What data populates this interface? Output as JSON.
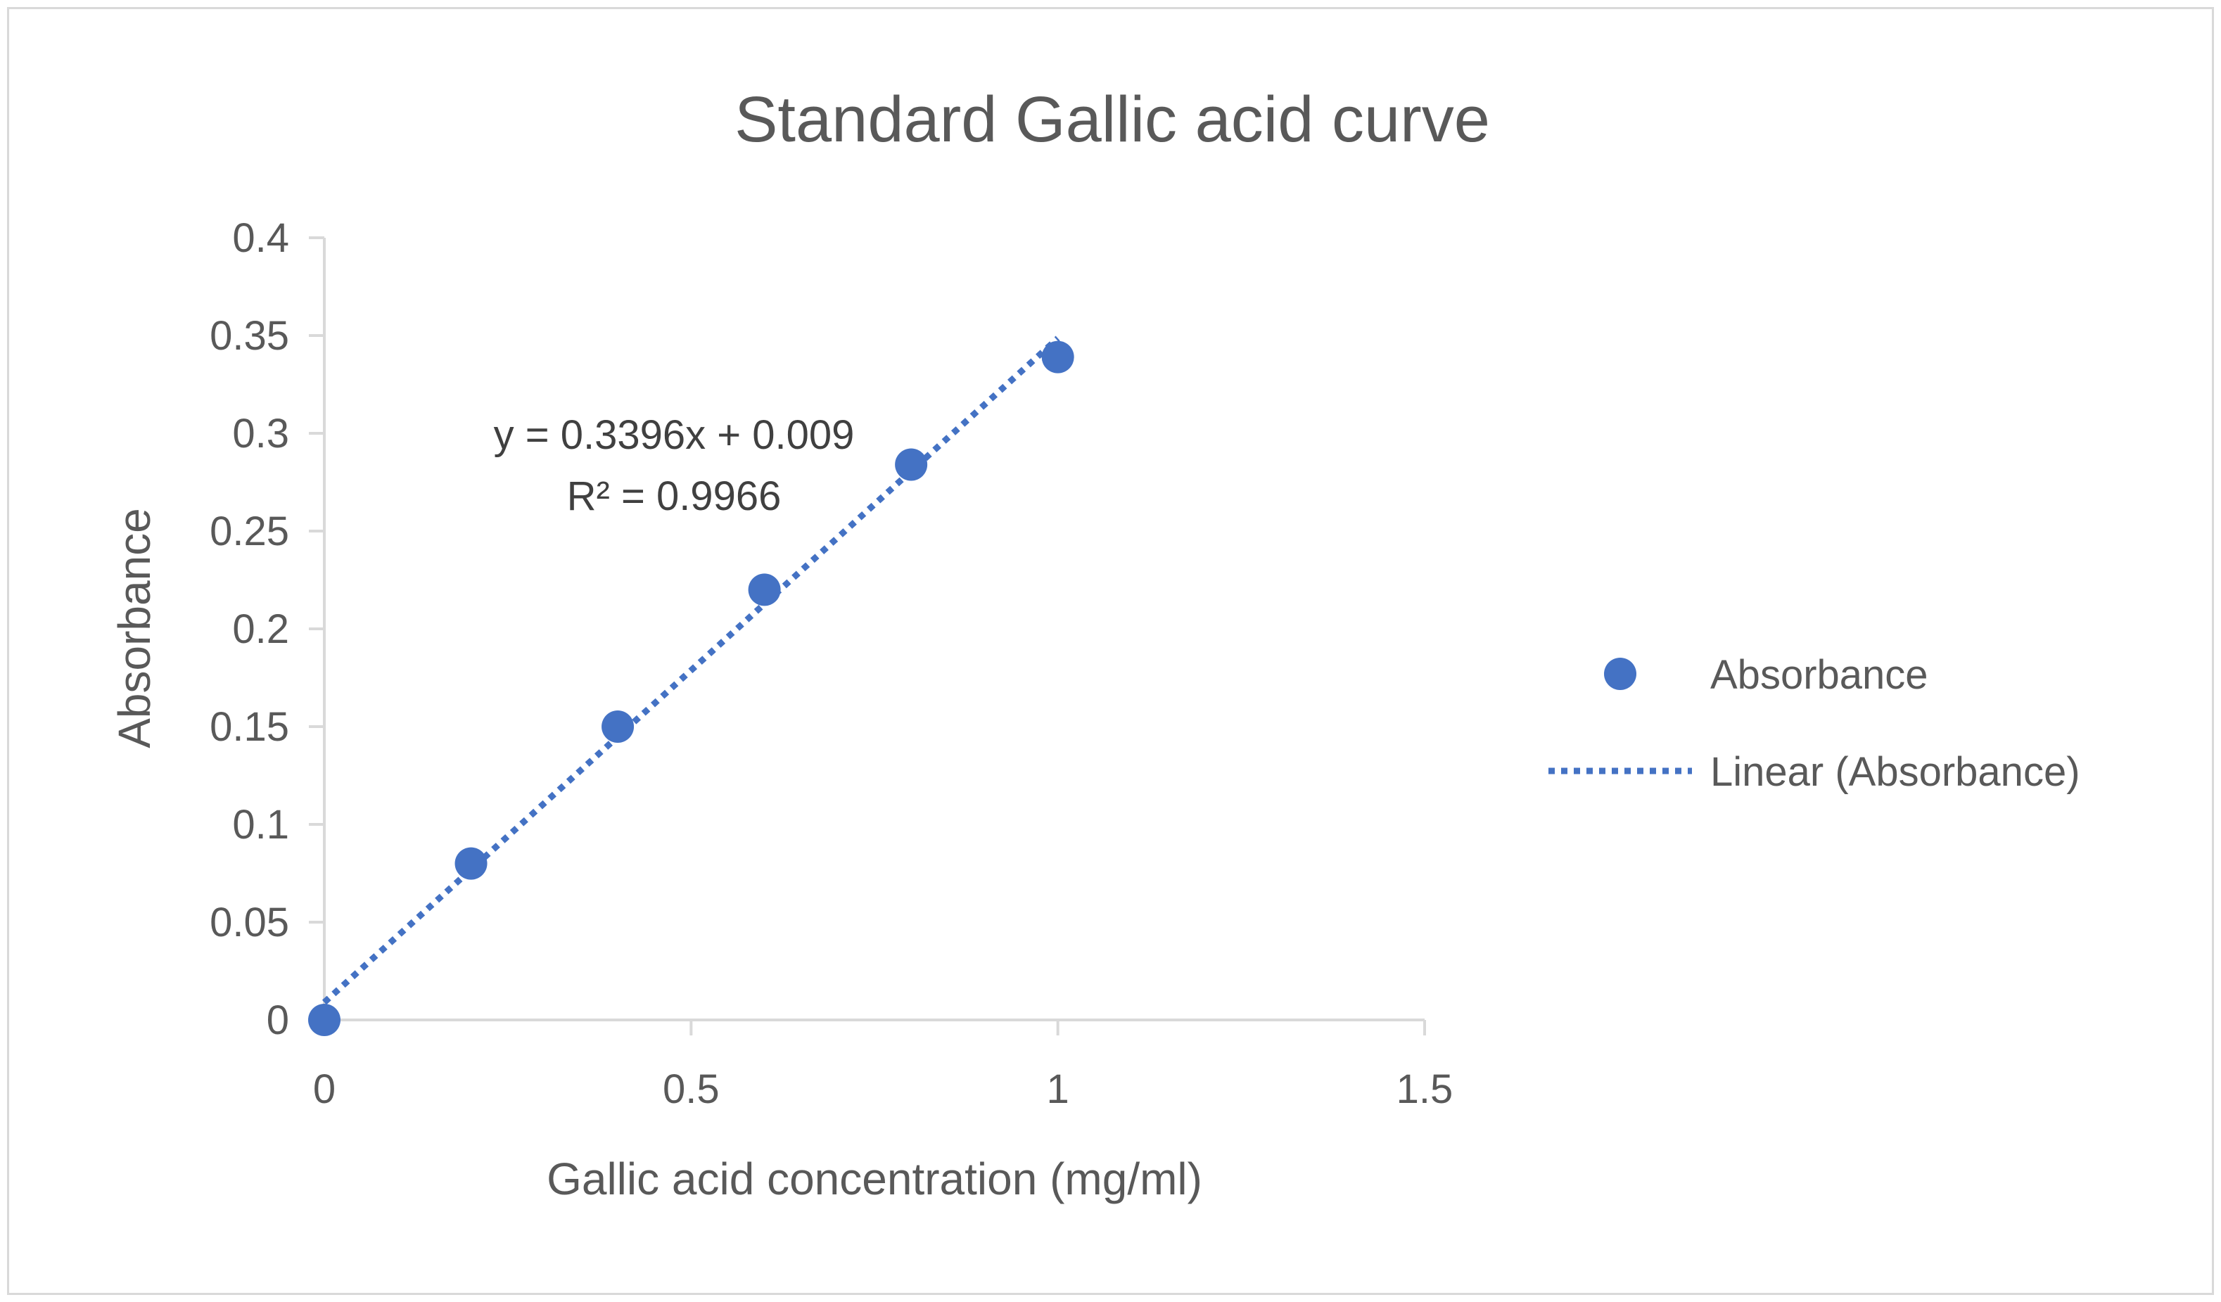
{
  "chart_data": {
    "type": "scatter",
    "title": "Standard Gallic acid curve",
    "xlabel": "Gallic acid concentration (mg/ml)",
    "ylabel": "Absorbance",
    "xlim": [
      0,
      1.5
    ],
    "ylim": [
      0,
      0.4
    ],
    "x_ticks": [
      "0",
      "0.5",
      "1",
      "1.5"
    ],
    "y_ticks": [
      "0",
      "0.05",
      "0.1",
      "0.15",
      "0.2",
      "0.25",
      "0.3",
      "0.35",
      "0.4"
    ],
    "x_tick_values": [
      0,
      0.5,
      1,
      1.5
    ],
    "y_tick_values": [
      0,
      0.05,
      0.1,
      0.15,
      0.2,
      0.25,
      0.3,
      0.35,
      0.4
    ],
    "grid": false,
    "legend_position": "right",
    "series": [
      {
        "name": "Absorbance",
        "x": [
          0,
          0.2,
          0.4,
          0.6,
          0.8,
          1.0
        ],
        "y": [
          0,
          0.08,
          0.15,
          0.22,
          0.284,
          0.339
        ],
        "color": "#4472c4"
      }
    ],
    "trendline": {
      "name": "Linear (Absorbance)",
      "slope": 0.3396,
      "intercept": 0.009,
      "x_range": [
        0,
        1.0
      ],
      "color": "#4472c4",
      "style": "dotted"
    },
    "annotations": {
      "equation": "y = 0.3396x + 0.009",
      "r_squared": "R² = 0.9966"
    },
    "colors": {
      "axis": "#d9d9d9",
      "text": "#595959",
      "marker": "#4472c4"
    }
  }
}
